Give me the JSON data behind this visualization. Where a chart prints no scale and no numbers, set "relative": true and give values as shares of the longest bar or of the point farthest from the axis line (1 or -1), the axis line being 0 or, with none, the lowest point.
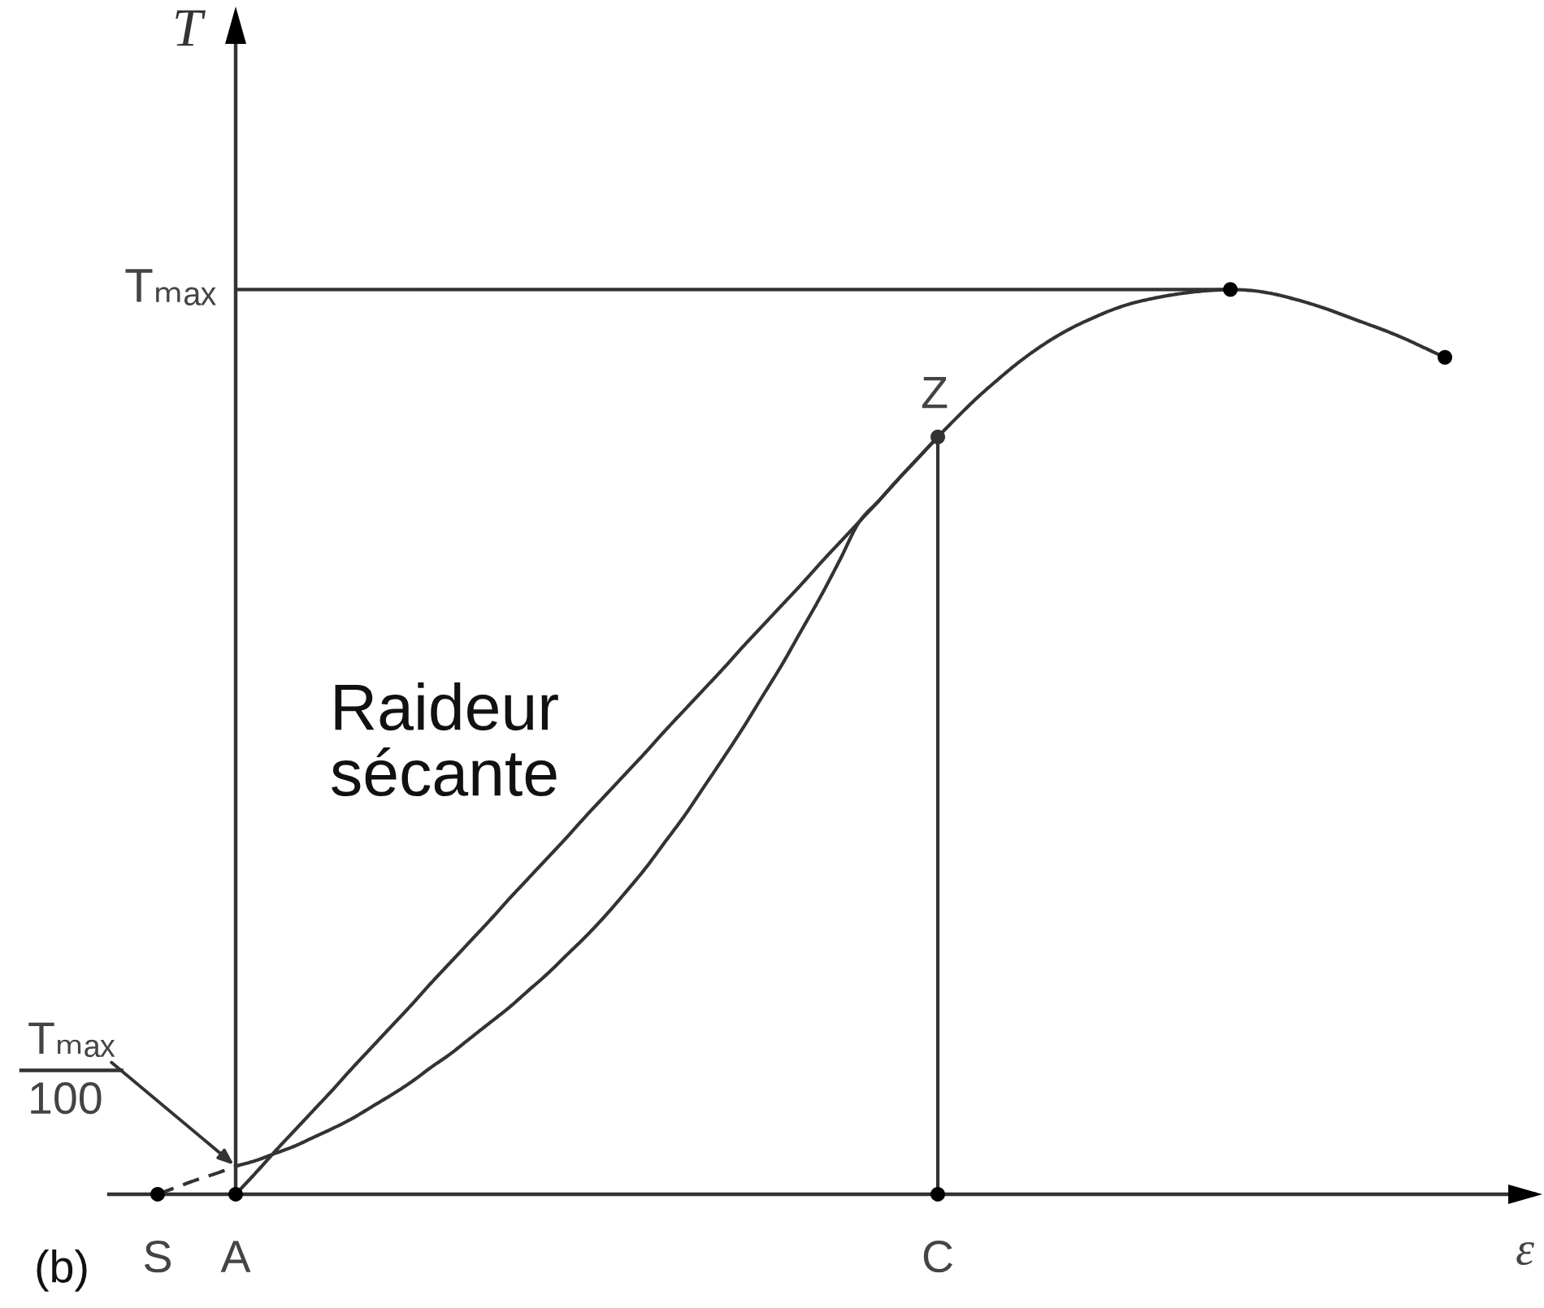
{
  "chart_data": {
    "type": "line",
    "relative": true,
    "xlabel": "ε",
    "ylabel": "T",
    "tick_labels": "x",
    "categories": [
      "S",
      null,
      null,
      null,
      "A",
      null,
      null,
      null,
      null,
      null,
      null,
      null,
      null,
      null,
      null,
      null,
      null,
      null,
      null,
      null,
      null,
      null,
      null,
      null,
      null,
      null,
      null,
      null,
      null,
      null,
      null,
      null,
      null,
      null,
      null,
      null,
      null,
      null,
      null,
      null,
      "C",
      null,
      null,
      null,
      null,
      null,
      null,
      null,
      null,
      null,
      null,
      null,
      null,
      null,
      null,
      null,
      null,
      null,
      null,
      null,
      null,
      null,
      null,
      null,
      null,
      null,
      null
    ],
    "series": [
      {
        "color": "#333333",
        "values": [
          null,
          null,
          null,
          null,
          0.031,
          0.037,
          0.045,
          0.053,
          0.063,
          0.073,
          0.084,
          0.097,
          0.11,
          0.124,
          0.14,
          0.155,
          0.172,
          0.189,
          0.206,
          0.225,
          0.244,
          0.265,
          0.286,
          0.309,
          0.334,
          0.36,
          0.389,
          0.418,
          0.45,
          0.482,
          0.515,
          0.55,
          0.585,
          0.623,
          0.661,
          0.702,
          0.744,
          0.767,
          0.791,
          0.814,
          0.837,
          0.859,
          0.88,
          0.899,
          0.917,
          0.933,
          0.947,
          0.959,
          0.969,
          0.978,
          0.985,
          0.99,
          0.994,
          0.997,
          0.999,
          1,
          0.999,
          0.996,
          0.991,
          0.985,
          0.978,
          0.97,
          0.962,
          0.954,
          0.945,
          0.935,
          0.925
        ]
      },
      {
        "color": "#333333",
        "line_style": "dashed",
        "values": [
          0,
          0.008,
          0.016,
          0.023,
          0.031,
          null,
          null,
          null,
          null,
          null,
          null,
          null,
          null,
          null,
          null,
          null,
          null,
          null,
          null,
          null,
          null,
          null,
          null,
          null,
          null,
          null,
          null,
          null,
          null,
          null,
          null,
          null,
          null,
          null,
          null,
          null,
          null,
          null,
          null,
          null,
          null,
          null,
          null,
          null,
          null,
          null,
          null,
          null,
          null,
          null,
          null,
          null,
          null,
          null,
          null,
          null,
          null,
          null,
          null,
          null,
          null,
          null,
          null,
          null,
          null,
          null,
          null
        ]
      },
      {
        "color": "#333333",
        "values": [
          null,
          null,
          null,
          null,
          0,
          0.023,
          0.047,
          0.07,
          0.093,
          0.116,
          0.14,
          0.163,
          0.186,
          0.209,
          0.233,
          0.256,
          0.279,
          0.302,
          0.326,
          0.349,
          0.372,
          0.395,
          0.419,
          0.442,
          0.465,
          0.488,
          0.512,
          0.535,
          0.558,
          0.581,
          0.605,
          0.628,
          0.651,
          0.674,
          0.698,
          0.721,
          0.744,
          0.767,
          0.791,
          0.814,
          0.837,
          null,
          null,
          null,
          null,
          null,
          null,
          null,
          null,
          null,
          null,
          null,
          null,
          null,
          null,
          null,
          null,
          null,
          null,
          null,
          null,
          null,
          null,
          null,
          null,
          null,
          null
        ]
      },
      {
        "color": "#333333",
        "values": [
          null,
          null,
          null,
          null,
          1,
          1,
          1,
          1,
          1,
          1,
          1,
          1,
          1,
          1,
          1,
          1,
          1,
          1,
          1,
          1,
          1,
          1,
          1,
          1,
          1,
          1,
          1,
          1,
          1,
          1,
          1,
          1,
          1,
          1,
          1,
          1,
          1,
          1,
          1,
          1,
          1,
          1,
          1,
          1,
          1,
          1,
          1,
          1,
          1,
          1,
          1,
          1,
          1,
          1,
          1,
          1,
          null,
          null,
          null,
          null,
          null,
          null,
          null,
          null,
          null,
          null,
          null
        ]
      },
      {
        "type": "lollipop",
        "color": "#333333",
        "marker": "circle",
        "values": [
          null,
          null,
          null,
          null,
          null,
          null,
          null,
          null,
          null,
          null,
          null,
          null,
          null,
          null,
          null,
          null,
          null,
          null,
          null,
          null,
          null,
          null,
          null,
          null,
          null,
          null,
          null,
          null,
          null,
          null,
          null,
          null,
          null,
          null,
          null,
          null,
          null,
          null,
          null,
          null,
          0.837,
          null,
          null,
          null,
          null,
          null,
          null,
          null,
          null,
          null,
          null,
          null,
          null,
          null,
          null,
          null,
          null,
          null,
          null,
          null,
          null,
          null,
          null,
          null,
          null,
          null,
          null
        ]
      },
      {
        "type": "scatter",
        "color": "#000000",
        "marker": "circle",
        "values": [
          0,
          null,
          null,
          null,
          0,
          null,
          null,
          null,
          null,
          null,
          null,
          null,
          null,
          null,
          null,
          null,
          null,
          null,
          null,
          null,
          null,
          null,
          null,
          null,
          null,
          null,
          null,
          null,
          null,
          null,
          null,
          null,
          null,
          null,
          null,
          null,
          null,
          null,
          null,
          null,
          0,
          null,
          null,
          null,
          null,
          null,
          null,
          null,
          null,
          null,
          null,
          null,
          null,
          null,
          null,
          1,
          null,
          null,
          null,
          null,
          null,
          null,
          null,
          null,
          null,
          null,
          0.925
        ]
      }
    ],
    "annotations": [
      {
        "text": "Tₘₐₓ",
        "x": "A",
        "y": 1
      },
      {
        "text": "Tₘₐₓ\n100",
        "x": "A",
        "y": 0.031
      },
      {
        "text": "Z",
        "x": "C",
        "y": 0.837
      },
      "Raideur\nsécante",
      "(b)"
    ]
  }
}
